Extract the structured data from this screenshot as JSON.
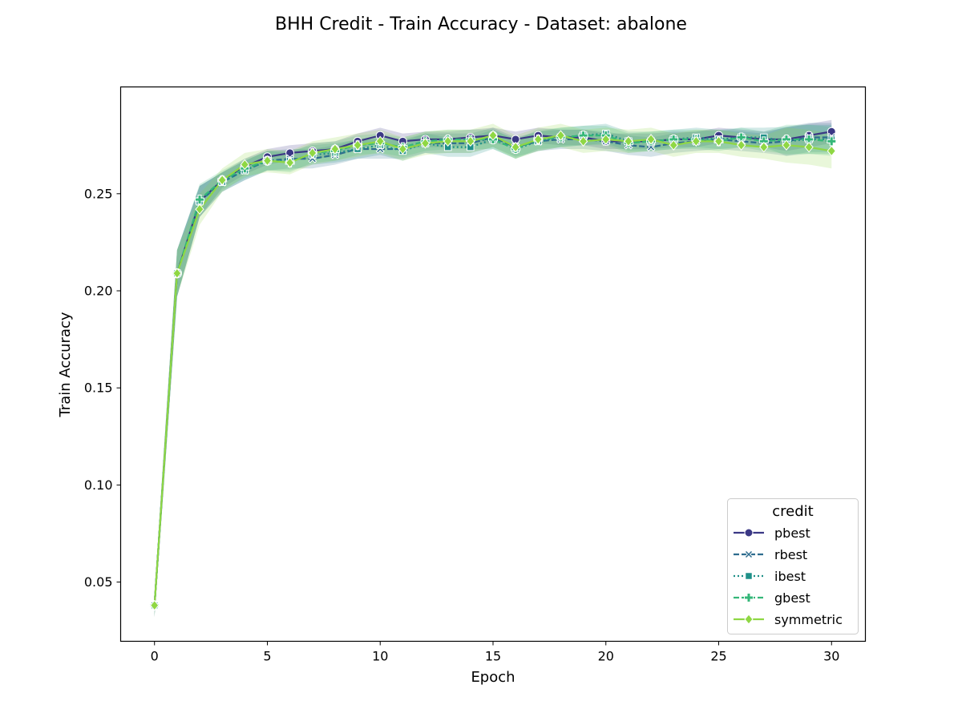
{
  "chart_data": {
    "type": "line",
    "title": "BHH Credit - Train Accuracy - Dataset: abalone",
    "xlabel": "Epoch",
    "ylabel": "Train Accuracy",
    "xlim": [
      -1.5,
      31.5
    ],
    "ylim": [
      0.0195,
      0.305
    ],
    "xticks": [
      0,
      5,
      10,
      15,
      20,
      25,
      30
    ],
    "xtick_labels": [
      "0",
      "5",
      "10",
      "15",
      "20",
      "25",
      "30"
    ],
    "yticks": [
      0.05,
      0.1,
      0.15,
      0.2,
      0.25
    ],
    "ytick_labels": [
      "0.05",
      "0.10",
      "0.15",
      "0.20",
      "0.25"
    ],
    "grid": false,
    "legend": {
      "title": "credit",
      "position": "lower-right"
    },
    "x": [
      0,
      1,
      2,
      3,
      4,
      5,
      6,
      7,
      8,
      9,
      10,
      11,
      12,
      13,
      14,
      15,
      16,
      17,
      18,
      19,
      20,
      21,
      22,
      23,
      24,
      25,
      26,
      27,
      28,
      29,
      30
    ],
    "series": [
      {
        "name": "pbest",
        "color": "#3b3885",
        "marker": "circle",
        "dash": "solid",
        "values": [
          0.038,
          0.209,
          0.246,
          0.257,
          0.264,
          0.269,
          0.271,
          0.272,
          0.273,
          0.277,
          0.28,
          0.277,
          0.278,
          0.278,
          0.279,
          0.28,
          0.278,
          0.28,
          0.279,
          0.279,
          0.277,
          0.277,
          0.277,
          0.278,
          0.278,
          0.28,
          0.279,
          0.278,
          0.278,
          0.28,
          0.282
        ],
        "band": 0.004
      },
      {
        "name": "rbest",
        "color": "#2d6c8e",
        "marker": "x",
        "dash": "dashed",
        "values": [
          0.038,
          0.209,
          0.246,
          0.256,
          0.262,
          0.267,
          0.268,
          0.268,
          0.27,
          0.273,
          0.273,
          0.273,
          0.276,
          0.276,
          0.276,
          0.279,
          0.274,
          0.277,
          0.278,
          0.278,
          0.277,
          0.275,
          0.274,
          0.276,
          0.277,
          0.278,
          0.277,
          0.276,
          0.277,
          0.279,
          0.279
        ],
        "band": 0.005
      },
      {
        "name": "ibest",
        "color": "#1f9088",
        "marker": "square",
        "dash": "dotted",
        "values": [
          0.038,
          0.209,
          0.246,
          0.256,
          0.262,
          0.267,
          0.267,
          0.27,
          0.271,
          0.273,
          0.275,
          0.272,
          0.276,
          0.274,
          0.274,
          0.278,
          0.273,
          0.277,
          0.279,
          0.28,
          0.281,
          0.277,
          0.277,
          0.278,
          0.279,
          0.278,
          0.279,
          0.279,
          0.277,
          0.278,
          0.278
        ],
        "band": 0.005
      },
      {
        "name": "gbest",
        "color": "#35b779",
        "marker": "plus",
        "dash": "dashed",
        "values": [
          0.038,
          0.209,
          0.247,
          0.257,
          0.263,
          0.267,
          0.266,
          0.271,
          0.272,
          0.275,
          0.276,
          0.274,
          0.277,
          0.278,
          0.278,
          0.278,
          0.273,
          0.278,
          0.279,
          0.28,
          0.28,
          0.276,
          0.277,
          0.278,
          0.278,
          0.277,
          0.279,
          0.277,
          0.278,
          0.278,
          0.277
        ],
        "band": 0.005
      },
      {
        "name": "symmetric",
        "color": "#8fd744",
        "marker": "diamond",
        "dash": "solid",
        "values": [
          0.038,
          0.209,
          0.242,
          0.257,
          0.265,
          0.267,
          0.266,
          0.271,
          0.273,
          0.275,
          0.277,
          0.273,
          0.276,
          0.277,
          0.277,
          0.28,
          0.274,
          0.278,
          0.28,
          0.277,
          0.278,
          0.277,
          0.278,
          0.275,
          0.277,
          0.277,
          0.275,
          0.274,
          0.275,
          0.274,
          0.272
        ],
        "band": 0.006
      }
    ]
  }
}
